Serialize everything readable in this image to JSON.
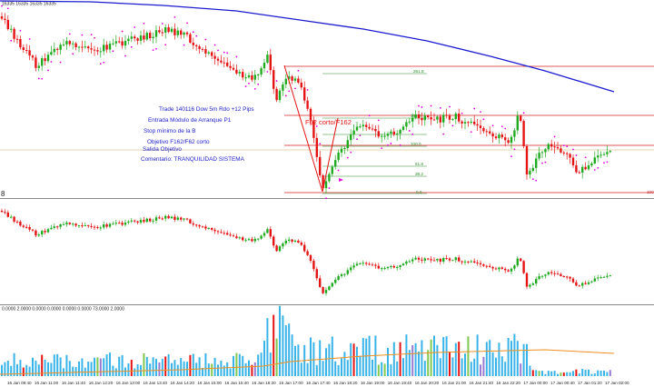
{
  "chart_data": [
    {
      "type": "candlestick",
      "panel": "main-price",
      "header_text": "16335 16335 16335 16335",
      "indicators": [
        "moving-average (blue)",
        "parabolic-sar (magenta dots)",
        "fibonacci-retracement (green)"
      ],
      "fib_levels": [
        "261.8",
        "161.8",
        "100.0",
        "61.8",
        "38.2",
        "0.0"
      ],
      "right_edge_label": "100",
      "annotation": "F62 corto/F162",
      "trade_notes": [
        "Trade 140116 Dow 5m Rdo +12 Pips",
        "Entrada Módulo de Arranque P1",
        "Stop mínimo de la B",
        "Objetivo F162/F62 corto",
        "Salida Objetivo",
        "Comentario: TRANQUILIDAD SISTEMA"
      ]
    },
    {
      "type": "candlestick",
      "panel": "secondary-price",
      "panel_label": "8"
    },
    {
      "type": "bar",
      "panel": "volume-histogram",
      "header_text": "0.0000 2.0000 0.0000 0.0000 0.0000 0.0000 73.0000 2.0000",
      "overlay": "average line (orange)"
    }
  ],
  "time_axis": {
    "labels": [
      "16 Jan 09:40",
      "16 Jan 11:00",
      "16 Jan 11:40",
      "16 Jan 12:20",
      "16 Jan 13:00",
      "16 Jan 13:40",
      "16 Jan 14:20",
      "16 Jan 15:00",
      "16 Jan 15:40",
      "16 Jan 16:20",
      "16 Jan 17:00",
      "16 Jan 17:40",
      "16 Jan 18:20",
      "16 Jan 19:00",
      "16 Jan 19:40",
      "16 Jan 20:20",
      "16 Jan 21:00",
      "16 Jan 21:40",
      "16 Jan 22:20",
      "17 Jan 00:00",
      "17 Jan 00:40",
      "17 Jan 01:20",
      "17 Jan 02:00"
    ]
  },
  "colors": {
    "bull": "#1faa1f",
    "bear": "#e41414",
    "ma": "#1c1ccf",
    "sar": "#e000e0",
    "fib": "#2a8a2a",
    "level": "#d02020",
    "volume": "#38b4e8",
    "volume_avg": "#f09020"
  }
}
